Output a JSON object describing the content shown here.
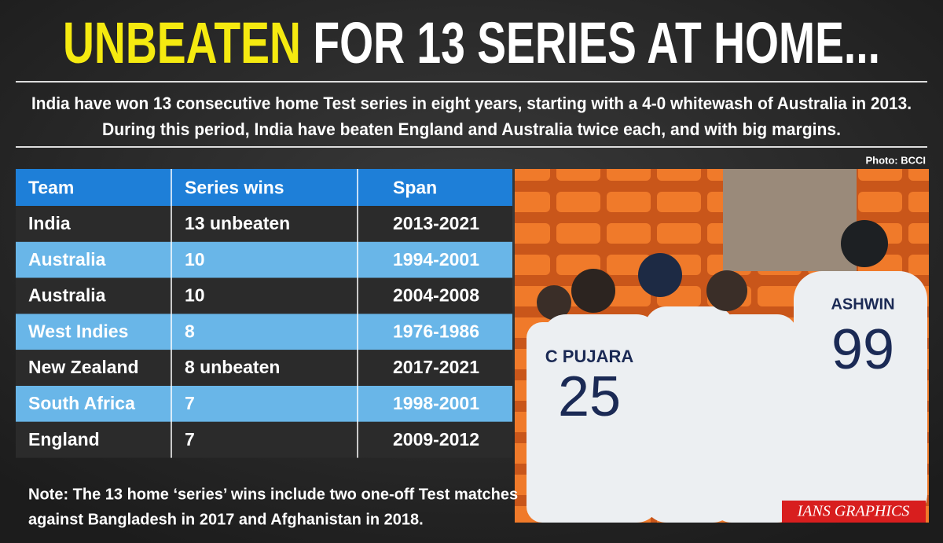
{
  "header": {
    "title_highlight": "UNBEATEN",
    "title_rest": "FOR 13 SERIES AT HOME...",
    "subtitle": [
      "India have won 13 consecutive home Test series in eight years, starting with a 4-0 whitewash of Australia in 2013.",
      "During this period, India have beaten England and Australia twice each, and with big margins."
    ]
  },
  "photo_credit": "Photo: BCCI",
  "table": {
    "columns": [
      "Team",
      "Series wins",
      "Span"
    ],
    "rows": [
      [
        "India",
        "13 unbeaten",
        "2013-2021"
      ],
      [
        "Australia",
        "10",
        "1994-2001"
      ],
      [
        "Australia",
        "10",
        "2004-2008"
      ],
      [
        "West Indies",
        "8",
        "1976-1986"
      ],
      [
        "New Zealand",
        "8 unbeaten",
        "2017-2021"
      ],
      [
        "South Africa",
        "7",
        "1998-2001"
      ],
      [
        "England",
        "7",
        "2009-2012"
      ]
    ]
  },
  "note": [
    "Note: The 13 home ‘series’ wins include two one-off Test matches",
    "against Bangladesh in 2017 and Afghanistan in 2018."
  ],
  "photo": {
    "jerseys": [
      {
        "name": "C PUJARA",
        "number": "25"
      },
      {
        "name": "ASHWIN",
        "number": "99"
      }
    ]
  },
  "footer": "IANS GRAPHICS"
}
